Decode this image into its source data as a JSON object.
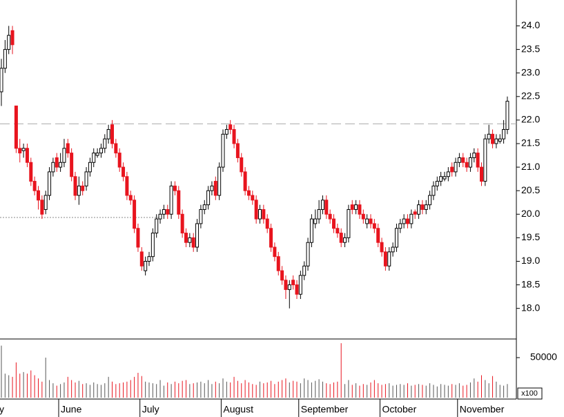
{
  "chart_data": {
    "type": "candlestick",
    "categories": [
      "y",
      null,
      null,
      null,
      null,
      null,
      null,
      null,
      null,
      null,
      null,
      null,
      null,
      null,
      null,
      null,
      "June",
      null,
      null,
      null,
      null,
      null,
      null,
      null,
      null,
      null,
      null,
      null,
      null,
      null,
      null,
      null,
      null,
      null,
      null,
      null,
      null,
      null,
      "July",
      null,
      null,
      null,
      null,
      null,
      null,
      null,
      null,
      null,
      null,
      null,
      null,
      null,
      null,
      null,
      null,
      null,
      null,
      null,
      null,
      null,
      "August",
      null,
      null,
      null,
      null,
      null,
      null,
      null,
      null,
      null,
      null,
      null,
      null,
      null,
      null,
      null,
      null,
      null,
      null,
      null,
      null,
      "September",
      null,
      null,
      null,
      null,
      null,
      null,
      null,
      null,
      null,
      null,
      null,
      null,
      null,
      null,
      null,
      null,
      null,
      null,
      null,
      null,
      null,
      "October",
      null,
      null,
      null,
      null,
      null,
      null,
      null,
      null,
      null,
      null,
      null,
      null,
      null,
      null,
      null,
      null,
      null,
      null,
      null,
      null,
      "November",
      null,
      null,
      null,
      null,
      null,
      null,
      null,
      null,
      null,
      null,
      null,
      null,
      null
    ],
    "open": [
      22.6,
      23.1,
      23.5,
      23.9,
      22.3,
      21.4,
      21.35,
      21.4,
      21.1,
      20.7,
      20.5,
      20.3,
      20.1,
      20.4,
      20.9,
      21.2,
      21.0,
      21.1,
      21.5,
      21.3,
      20.8,
      20.4,
      20.6,
      20.6,
      20.9,
      21.1,
      21.25,
      21.3,
      21.4,
      21.6,
      21.9,
      21.5,
      21.3,
      21.0,
      20.8,
      20.4,
      20.3,
      19.7,
      19.2,
      18.8,
      19.0,
      19.1,
      19.6,
      19.9,
      20.0,
      20.1,
      20.0,
      20.6,
      20.5,
      20.0,
      19.6,
      19.4,
      19.5,
      19.3,
      19.8,
      20.1,
      20.2,
      20.5,
      20.7,
      20.4,
      21.0,
      21.7,
      21.9,
      21.8,
      21.5,
      21.2,
      20.9,
      20.5,
      20.4,
      20.3,
      19.9,
      20.1,
      19.9,
      19.7,
      19.3,
      19.1,
      18.8,
      18.6,
      18.4,
      18.6,
      18.5,
      18.3,
      18.7,
      18.9,
      19.4,
      19.8,
      19.9,
      20.1,
      20.3,
      20.0,
      19.9,
      19.7,
      19.6,
      19.4,
      19.5,
      20.2,
      20.1,
      20.2,
      20.0,
      19.8,
      19.9,
      19.8,
      19.7,
      19.4,
      19.2,
      18.9,
      19.2,
      19.3,
      19.7,
      19.8,
      19.9,
      19.8,
      20.05,
      20.0,
      20.2,
      20.1,
      20.2,
      20.4,
      20.6,
      20.7,
      20.75,
      20.8,
      21.0,
      20.9,
      21.1,
      21.2,
      21.1,
      21.0,
      21.2,
      21.3,
      21.0,
      20.7,
      21.6,
      21.7,
      21.5,
      21.55,
      21.6,
      21.8
    ],
    "high": [
      23.3,
      23.7,
      24.0,
      24.0,
      22.3,
      21.6,
      21.5,
      21.5,
      21.2,
      20.8,
      20.6,
      20.4,
      20.5,
      21.0,
      21.2,
      21.3,
      21.3,
      21.6,
      21.6,
      21.4,
      20.9,
      20.8,
      20.7,
      21.0,
      21.2,
      21.4,
      21.4,
      21.5,
      21.7,
      21.9,
      22.0,
      21.6,
      21.4,
      21.1,
      20.9,
      20.5,
      20.4,
      19.8,
      19.3,
      19.1,
      19.2,
      19.7,
      20.0,
      20.1,
      20.2,
      20.2,
      20.7,
      20.7,
      20.6,
      20.1,
      19.7,
      19.6,
      19.6,
      19.9,
      20.2,
      20.3,
      20.6,
      20.7,
      20.8,
      21.1,
      21.8,
      21.9,
      22.0,
      21.9,
      21.6,
      21.3,
      21.0,
      20.6,
      20.5,
      20.4,
      20.2,
      20.2,
      20.0,
      19.8,
      19.4,
      19.2,
      18.9,
      18.7,
      18.6,
      18.7,
      18.6,
      18.8,
      19.0,
      19.5,
      20.0,
      20.1,
      20.3,
      20.4,
      20.4,
      20.1,
      20.0,
      19.8,
      19.7,
      19.6,
      20.2,
      20.3,
      20.3,
      20.3,
      20.1,
      20.0,
      20.0,
      19.9,
      19.8,
      19.5,
      19.3,
      19.3,
      19.4,
      19.8,
      19.9,
      20.0,
      20.0,
      20.1,
      20.1,
      20.3,
      20.3,
      20.3,
      20.5,
      20.7,
      20.8,
      20.9,
      20.9,
      21.0,
      21.1,
      21.2,
      21.3,
      21.3,
      21.2,
      21.3,
      21.4,
      21.4,
      21.1,
      21.7,
      21.9,
      21.8,
      21.7,
      21.7,
      22.0,
      22.5
    ],
    "low": [
      22.3,
      23.0,
      23.4,
      23.4,
      21.3,
      21.1,
      21.2,
      21.0,
      20.6,
      20.4,
      20.1,
      19.9,
      20.0,
      20.3,
      20.8,
      20.9,
      20.9,
      21.0,
      21.2,
      20.7,
      20.3,
      20.2,
      20.4,
      20.5,
      20.8,
      21.0,
      21.2,
      21.2,
      21.3,
      21.5,
      21.4,
      21.2,
      20.9,
      20.7,
      20.3,
      20.2,
      19.6,
      19.2,
      18.8,
      18.7,
      18.9,
      19.0,
      19.5,
      19.8,
      19.9,
      19.9,
      19.9,
      20.4,
      19.9,
      19.5,
      19.3,
      19.3,
      19.2,
      19.2,
      19.7,
      20.0,
      20.1,
      20.4,
      20.3,
      20.3,
      20.9,
      21.6,
      21.7,
      21.4,
      21.1,
      20.8,
      20.4,
      20.3,
      20.2,
      19.8,
      19.8,
      19.8,
      19.6,
      19.2,
      19.0,
      18.7,
      18.5,
      18.2,
      18.0,
      18.4,
      18.2,
      18.2,
      18.6,
      18.8,
      19.3,
      19.7,
      19.8,
      20.0,
      19.9,
      19.8,
      19.6,
      19.5,
      19.3,
      19.3,
      19.4,
      20.0,
      20.0,
      19.9,
      19.8,
      19.7,
      19.7,
      19.6,
      19.3,
      19.1,
      18.8,
      18.8,
      19.1,
      19.2,
      19.6,
      19.7,
      19.7,
      19.7,
      19.9,
      19.9,
      20.0,
      20.0,
      20.1,
      20.3,
      20.5,
      20.6,
      20.7,
      20.7,
      20.8,
      20.8,
      21.0,
      21.0,
      20.9,
      20.9,
      21.1,
      20.9,
      20.6,
      20.6,
      21.5,
      21.4,
      21.4,
      21.5,
      21.5,
      21.7
    ],
    "close": [
      23.1,
      23.5,
      23.8,
      23.6,
      21.4,
      21.3,
      21.4,
      21.1,
      20.7,
      20.5,
      20.3,
      20.0,
      20.4,
      20.9,
      21.1,
      21.0,
      21.1,
      21.4,
      21.3,
      20.8,
      20.4,
      20.6,
      20.5,
      20.9,
      21.1,
      21.3,
      21.3,
      21.4,
      21.6,
      21.8,
      21.5,
      21.3,
      21.0,
      20.8,
      20.4,
      20.3,
      19.7,
      19.3,
      18.9,
      19.0,
      19.1,
      19.6,
      19.9,
      20.0,
      20.1,
      20.0,
      20.6,
      20.5,
      20.0,
      19.6,
      19.4,
      19.5,
      19.3,
      19.8,
      20.1,
      20.2,
      20.5,
      20.6,
      20.4,
      21.0,
      21.7,
      21.8,
      21.8,
      21.5,
      21.2,
      20.9,
      20.5,
      20.4,
      20.3,
      19.9,
      20.1,
      19.9,
      19.7,
      19.3,
      19.1,
      18.8,
      18.6,
      18.4,
      18.5,
      18.5,
      18.3,
      18.7,
      18.9,
      19.4,
      19.9,
      19.9,
      20.1,
      20.3,
      20.0,
      19.9,
      19.7,
      19.6,
      19.4,
      19.5,
      20.1,
      20.1,
      20.2,
      20.0,
      19.9,
      19.9,
      19.8,
      19.7,
      19.4,
      19.2,
      18.9,
      19.2,
      19.3,
      19.7,
      19.8,
      19.9,
      19.8,
      20.0,
      20.0,
      20.2,
      20.1,
      20.2,
      20.4,
      20.6,
      20.7,
      20.8,
      20.8,
      20.9,
      20.9,
      21.1,
      21.2,
      21.1,
      21.0,
      21.2,
      21.3,
      21.0,
      20.7,
      21.6,
      21.7,
      21.5,
      21.6,
      21.6,
      21.8,
      22.4
    ],
    "volume": [
      65000,
      30000,
      28000,
      26000,
      44000,
      30000,
      32000,
      30000,
      34000,
      28000,
      24000,
      20000,
      50000,
      22000,
      18000,
      15000,
      17000,
      19000,
      26000,
      22000,
      19000,
      21000,
      17000,
      18000,
      16000,
      19000,
      17000,
      16000,
      18000,
      26000,
      20000,
      17000,
      18000,
      19000,
      20000,
      22000,
      26000,
      31000,
      27000,
      20000,
      19000,
      18000,
      17000,
      22000,
      15000,
      19000,
      17000,
      20000,
      18000,
      21000,
      22000,
      17000,
      18000,
      19000,
      20000,
      18000,
      22000,
      17000,
      20000,
      18000,
      24000,
      20000,
      19000,
      26000,
      21000,
      18000,
      22000,
      19000,
      17000,
      16000,
      20000,
      18000,
      19000,
      21000,
      17000,
      20000,
      22000,
      24000,
      19000,
      21000,
      20000,
      18000,
      24000,
      22000,
      19000,
      21000,
      23000,
      20000,
      18000,
      17000,
      19000,
      20000,
      68000,
      17000,
      22000,
      16000,
      18000,
      15000,
      17000,
      16000,
      19000,
      22000,
      18000,
      16000,
      17000,
      18000,
      15000,
      16000,
      17000,
      16000,
      18000,
      15000,
      16000,
      17000,
      16000,
      15000,
      18000,
      16000,
      14000,
      17000,
      16000,
      15000,
      17000,
      16000,
      18000,
      15000,
      16000,
      19000,
      24000,
      20000,
      28000,
      22000,
      18000,
      27000,
      20000,
      16000,
      15000,
      17000
    ],
    "up_color": "#ffffff",
    "down_color": "#e8141e",
    "ylim": [
      17.35,
      24.55
    ],
    "yticks": [
      {
        "value": 18,
        "label": "18.0"
      },
      18.5,
      {
        "value": 19,
        "label": "19.0"
      },
      19.5,
      {
        "value": 20,
        "label": "20.0"
      },
      20.5,
      {
        "value": 21,
        "label": "21.0"
      },
      21.5,
      {
        "value": 22,
        "label": "22.0"
      },
      22.5,
      {
        "value": 23,
        "label": "23.0"
      },
      23.5,
      {
        "value": 24,
        "label": "24.0"
      }
    ],
    "volume_lim": [
      0,
      72400
    ],
    "volume_ticks": [
      50000
    ],
    "volume_unit": "x100",
    "reference_lines": [
      {
        "value": 21.92,
        "style": "dashed"
      },
      {
        "value": 19.93,
        "style": "dotted"
      }
    ]
  }
}
